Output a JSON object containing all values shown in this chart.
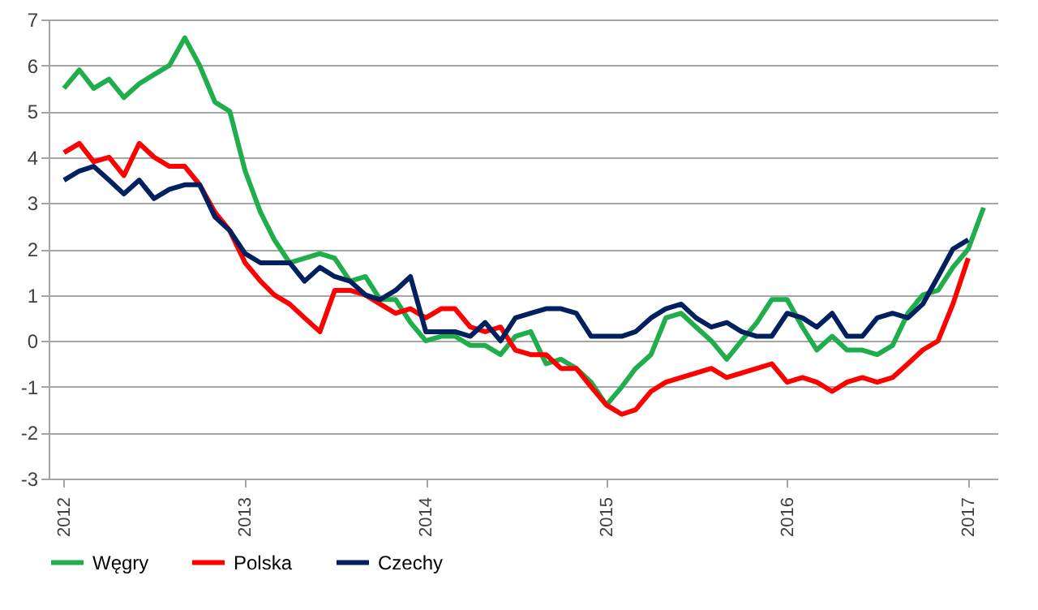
{
  "chart_data": {
    "type": "line",
    "x": [
      "2012-01",
      "2012-02",
      "2012-03",
      "2012-04",
      "2012-05",
      "2012-06",
      "2012-07",
      "2012-08",
      "2012-09",
      "2012-10",
      "2012-11",
      "2012-12",
      "2013-01",
      "2013-02",
      "2013-03",
      "2013-04",
      "2013-05",
      "2013-06",
      "2013-07",
      "2013-08",
      "2013-09",
      "2013-10",
      "2013-11",
      "2013-12",
      "2014-01",
      "2014-02",
      "2014-03",
      "2014-04",
      "2014-05",
      "2014-06",
      "2014-07",
      "2014-08",
      "2014-09",
      "2014-10",
      "2014-11",
      "2014-12",
      "2015-01",
      "2015-02",
      "2015-03",
      "2015-04",
      "2015-05",
      "2015-06",
      "2015-07",
      "2015-08",
      "2015-09",
      "2015-10",
      "2015-11",
      "2015-12",
      "2016-01",
      "2016-02",
      "2016-03",
      "2016-04",
      "2016-05",
      "2016-06",
      "2016-07",
      "2016-08",
      "2016-09",
      "2016-10",
      "2016-11",
      "2016-12",
      "2017-01",
      "2017-02"
    ],
    "series": [
      {
        "name": "Węgry",
        "color": "#1fae4b",
        "values": [
          5.5,
          5.9,
          5.5,
          5.7,
          5.3,
          5.6,
          5.8,
          6.0,
          6.6,
          6.0,
          5.2,
          5.0,
          3.7,
          2.8,
          2.2,
          1.7,
          1.8,
          1.9,
          1.8,
          1.3,
          1.4,
          0.9,
          0.9,
          0.4,
          0.0,
          0.1,
          0.1,
          -0.1,
          -0.1,
          -0.3,
          0.1,
          0.2,
          -0.5,
          -0.4,
          -0.6,
          -0.9,
          -1.4,
          -1.0,
          -0.6,
          -0.3,
          0.5,
          0.6,
          0.3,
          0.0,
          -0.4,
          0.0,
          0.4,
          0.9,
          0.9,
          0.3,
          -0.2,
          0.1,
          -0.2,
          -0.2,
          -0.3,
          -0.1,
          0.6,
          1.0,
          1.1,
          1.6,
          2.0,
          2.9
        ]
      },
      {
        "name": "Polska",
        "color": "#ff0000",
        "values": [
          4.1,
          4.3,
          3.9,
          4.0,
          3.6,
          4.3,
          4.0,
          3.8,
          3.8,
          3.4,
          2.8,
          2.4,
          1.7,
          1.3,
          1.0,
          0.8,
          0.5,
          0.2,
          1.1,
          1.1,
          1.0,
          0.8,
          0.6,
          0.7,
          0.5,
          0.7,
          0.7,
          0.3,
          0.2,
          0.3,
          -0.2,
          -0.3,
          -0.3,
          -0.6,
          -0.6,
          -1.0,
          -1.4,
          -1.6,
          -1.5,
          -1.1,
          -0.9,
          -0.8,
          -0.7,
          -0.6,
          -0.8,
          -0.7,
          -0.6,
          -0.5,
          -0.9,
          -0.8,
          -0.9,
          -1.1,
          -0.9,
          -0.8,
          -0.9,
          -0.8,
          -0.5,
          -0.2,
          0.0,
          0.8,
          1.8,
          null
        ]
      },
      {
        "name": "Czechy",
        "color": "#002060",
        "values": [
          3.5,
          3.7,
          3.8,
          3.5,
          3.2,
          3.5,
          3.1,
          3.3,
          3.4,
          3.4,
          2.7,
          2.4,
          1.9,
          1.7,
          1.7,
          1.7,
          1.3,
          1.6,
          1.4,
          1.3,
          1.0,
          0.9,
          1.1,
          1.4,
          0.2,
          0.2,
          0.2,
          0.1,
          0.4,
          0.0,
          0.5,
          0.6,
          0.7,
          0.7,
          0.6,
          0.1,
          0.1,
          0.1,
          0.2,
          0.5,
          0.7,
          0.8,
          0.5,
          0.3,
          0.4,
          0.2,
          0.1,
          0.1,
          0.6,
          0.5,
          0.3,
          0.6,
          0.1,
          0.1,
          0.5,
          0.6,
          0.5,
          0.8,
          1.4,
          2.0,
          2.2,
          null
        ]
      }
    ],
    "xlim": [
      "2011-12",
      "2017-03"
    ],
    "xticks": [
      {
        "value": "2012",
        "label": "2012"
      },
      {
        "value": "2013",
        "label": "2013"
      },
      {
        "value": "2014",
        "label": "2014"
      },
      {
        "value": "2015",
        "label": "2015"
      },
      {
        "value": "2016",
        "label": "2016"
      },
      {
        "value": "2017",
        "label": "2017"
      }
    ],
    "ylim": [
      -3,
      7
    ],
    "yticks": [
      -3,
      -2,
      -1,
      0,
      1,
      2,
      3,
      4,
      5,
      6,
      7
    ],
    "grid": "y",
    "legend": "bottom",
    "line_style": "solid",
    "marker": "none"
  }
}
